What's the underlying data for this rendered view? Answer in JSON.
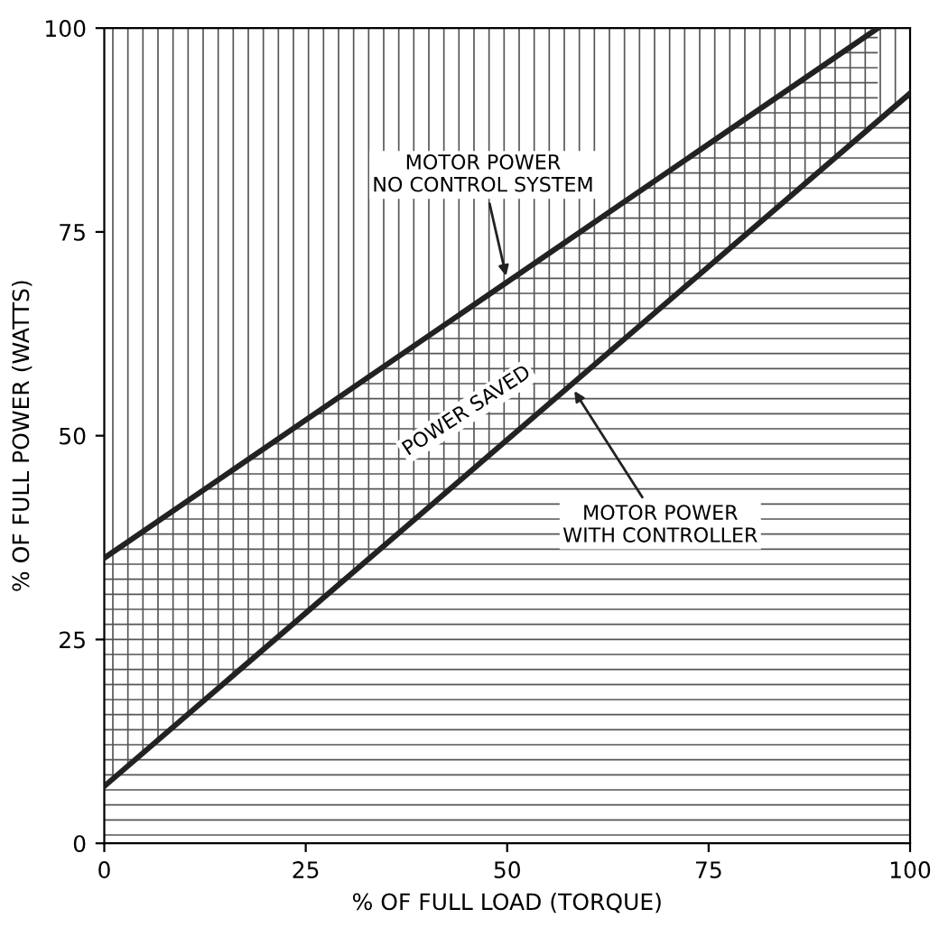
{
  "chart_data": {
    "type": "area",
    "xlabel": "% OF FULL LOAD (TORQUE)",
    "ylabel": "% OF FULL POWER (WATTS)",
    "xlim": [
      0,
      100
    ],
    "ylim": [
      0,
      100
    ],
    "xticks": [
      0,
      25,
      50,
      75,
      100
    ],
    "yticks": [
      0,
      25,
      50,
      75,
      100
    ],
    "grid": false,
    "legend": false,
    "marker": "none",
    "line_style": "solid",
    "series": [
      {
        "x": [
          0,
          96
        ],
        "values": [
          35,
          100
        ],
        "color": "#222222"
      },
      {
        "x": [
          0,
          100
        ],
        "values": [
          7,
          92
        ],
        "color": "#222222"
      }
    ],
    "annotations": [
      {
        "text": "MOTOR POWER\nNO CONTROL SYSTEM",
        "x": 50,
        "y": 69
      },
      "POWER SAVED",
      {
        "text": "MOTOR POWER\nWITH CONTROLLER",
        "x": 58,
        "y": 56
      }
    ]
  }
}
